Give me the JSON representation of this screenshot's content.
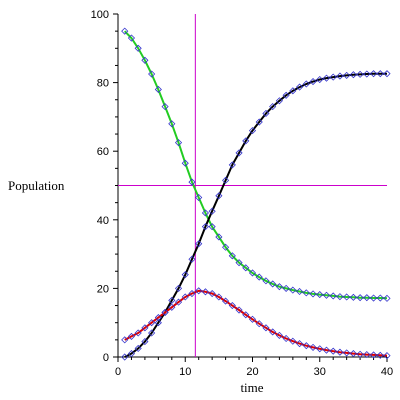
{
  "chart_data": {
    "type": "scatter",
    "xlabel": "time",
    "ylabel": "Population",
    "xlim": [
      0,
      40
    ],
    "ylim": [
      0,
      100
    ],
    "x_ticks": [
      0,
      10,
      20,
      30,
      40
    ],
    "y_ticks": [
      0,
      20,
      40,
      60,
      80,
      100
    ],
    "x_tick_labels": [
      "0",
      "10",
      "20",
      "30",
      "40"
    ],
    "y_tick_labels": [
      "0",
      "20",
      "40",
      "60",
      "80",
      "100"
    ],
    "grid": false,
    "legend": "none",
    "reference_lines": {
      "vertical_x": 11.5,
      "horizontal_y": 50,
      "color": "#cc00cc"
    },
    "marker": {
      "shape": "diamond",
      "color": "#3333cc"
    },
    "series": [
      {
        "color": "#22cc22",
        "x": [
          1,
          2,
          3,
          4,
          5,
          6,
          7,
          8,
          9,
          10,
          11,
          12,
          13,
          14,
          15,
          16,
          17,
          18,
          19,
          20,
          21,
          22,
          23,
          24,
          25,
          26,
          27,
          28,
          29,
          30,
          31,
          32,
          33,
          34,
          35,
          36,
          37,
          38,
          39,
          40
        ],
        "y": [
          95,
          93,
          90,
          86.5,
          82.5,
          78,
          73,
          68,
          62.5,
          56.5,
          51,
          46.5,
          42,
          38,
          35,
          32,
          29.5,
          27.5,
          26,
          24.5,
          23.3,
          22.2,
          21.3,
          20.5,
          20,
          19.5,
          19.1,
          18.7,
          18.4,
          18.2,
          18,
          17.8,
          17.6,
          17.5,
          17.4,
          17.3,
          17.3,
          17.2,
          17.2,
          17.1
        ]
      },
      {
        "color": "#000000",
        "x": [
          1,
          2,
          3,
          4,
          5,
          6,
          7,
          8,
          9,
          10,
          11,
          12,
          13,
          14,
          15,
          16,
          17,
          18,
          19,
          20,
          21,
          22,
          23,
          24,
          25,
          26,
          27,
          28,
          29,
          30,
          31,
          32,
          33,
          34,
          35,
          36,
          37,
          38,
          39,
          40
        ],
        "y": [
          0,
          1,
          2.5,
          4.5,
          7,
          10,
          13,
          16.5,
          20,
          24,
          28.5,
          33,
          38,
          42.5,
          47,
          51.5,
          56,
          59.5,
          63,
          66,
          68.5,
          71,
          73,
          74.7,
          76.3,
          77.6,
          78.7,
          79.6,
          80.3,
          80.9,
          81.3,
          81.6,
          81.9,
          82.1,
          82.3,
          82.4,
          82.5,
          82.6,
          82.6,
          82.6
        ]
      },
      {
        "color": "#dd0000",
        "x": [
          1,
          2,
          3,
          4,
          5,
          6,
          7,
          8,
          9,
          10,
          11,
          12,
          13,
          14,
          15,
          16,
          17,
          18,
          19,
          20,
          21,
          22,
          23,
          24,
          25,
          26,
          27,
          28,
          29,
          30,
          31,
          32,
          33,
          34,
          35,
          36,
          37,
          38,
          39,
          40
        ],
        "y": [
          5,
          6,
          7,
          8.5,
          10,
          11.5,
          13,
          14.5,
          16,
          17.5,
          18.5,
          19.3,
          19,
          18.5,
          17.5,
          16.3,
          15,
          13.7,
          12.3,
          11,
          9.7,
          8.5,
          7.3,
          6.3,
          5.4,
          4.6,
          3.9,
          3.3,
          2.8,
          2.4,
          2,
          1.7,
          1.4,
          1.2,
          1,
          0.8,
          0.7,
          0.6,
          0.5,
          0.4
        ]
      }
    ]
  }
}
